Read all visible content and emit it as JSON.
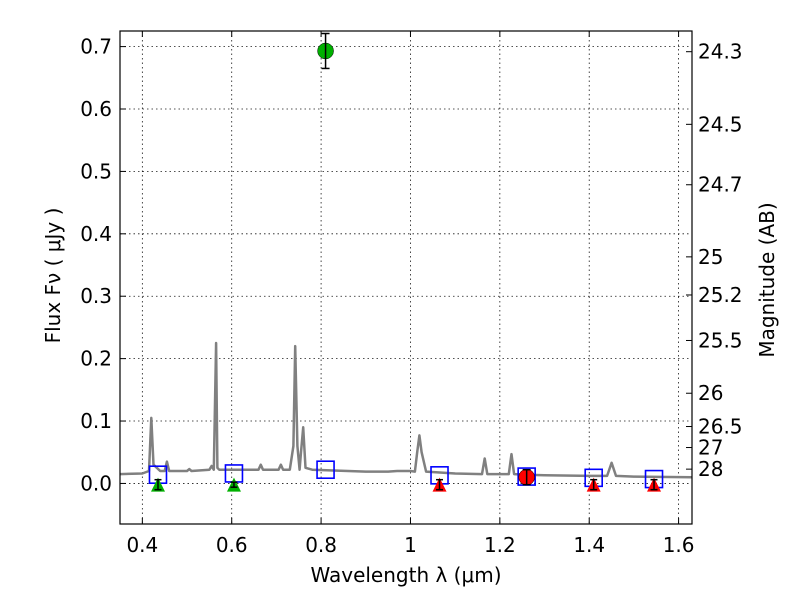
{
  "chart_data": {
    "type": "scatter",
    "xlabel": "Wavelength  λ (μm)",
    "ylabel": "Flux  Fν  ( μJy )",
    "y2label": "Magnitude (AB)",
    "xlim": [
      0.35,
      1.63
    ],
    "ylim": [
      -0.065,
      0.725
    ],
    "grid": true,
    "x_ticks": [
      {
        "value": 0.4,
        "label": "0.4"
      },
      {
        "value": 0.6,
        "label": "0.6"
      },
      {
        "value": 0.8,
        "label": "0.8"
      },
      {
        "value": 1.0,
        "label": "1"
      },
      {
        "value": 1.2,
        "label": "1.2"
      },
      {
        "value": 1.4,
        "label": "1.4"
      },
      {
        "value": 1.6,
        "label": "1.6"
      }
    ],
    "y_ticks": [
      {
        "value": 0.0,
        "label": "0.0"
      },
      {
        "value": 0.1,
        "label": "0.1"
      },
      {
        "value": 0.2,
        "label": "0.2"
      },
      {
        "value": 0.3,
        "label": "0.3"
      },
      {
        "value": 0.4,
        "label": "0.4"
      },
      {
        "value": 0.5,
        "label": "0.5"
      },
      {
        "value": 0.6,
        "label": "0.6"
      },
      {
        "value": 0.7,
        "label": "0.7"
      }
    ],
    "y2_ticks": [
      {
        "value": 24.3,
        "label": "24.3"
      },
      {
        "value": 24.5,
        "label": "24.5"
      },
      {
        "value": 24.7,
        "label": "24.7"
      },
      {
        "value": 25.0,
        "label": "25"
      },
      {
        "value": 25.2,
        "label": "25.2"
      },
      {
        "value": 25.5,
        "label": "25.5"
      },
      {
        "value": 26.0,
        "label": "26"
      },
      {
        "value": 26.5,
        "label": "26.5"
      },
      {
        "value": 27.0,
        "label": "27"
      },
      {
        "value": 28.0,
        "label": "28"
      }
    ],
    "template_spectrum": {
      "color": "#808080",
      "x": [
        0.35,
        0.4,
        0.415,
        0.42,
        0.425,
        0.44,
        0.45,
        0.455,
        0.46,
        0.48,
        0.5,
        0.505,
        0.51,
        0.55,
        0.555,
        0.56,
        0.565,
        0.568,
        0.572,
        0.58,
        0.6,
        0.66,
        0.665,
        0.67,
        0.705,
        0.71,
        0.715,
        0.73,
        0.738,
        0.742,
        0.747,
        0.752,
        0.755,
        0.76,
        0.765,
        0.78,
        0.9,
        0.95,
        0.97,
        1.0,
        1.01,
        1.015,
        1.02,
        1.025,
        1.035,
        1.1,
        1.16,
        1.166,
        1.172,
        1.2,
        1.22,
        1.226,
        1.232,
        1.26,
        1.3,
        1.4,
        1.44,
        1.45,
        1.46,
        1.5,
        1.63
      ],
      "y": [
        0.015,
        0.016,
        0.02,
        0.105,
        0.03,
        0.02,
        0.02,
        0.035,
        0.02,
        0.02,
        0.02,
        0.023,
        0.02,
        0.022,
        0.028,
        0.022,
        0.225,
        0.025,
        0.022,
        0.022,
        0.022,
        0.022,
        0.03,
        0.022,
        0.022,
        0.03,
        0.022,
        0.022,
        0.06,
        0.22,
        0.06,
        0.022,
        0.05,
        0.09,
        0.025,
        0.022,
        0.019,
        0.019,
        0.02,
        0.02,
        0.019,
        0.05,
        0.077,
        0.05,
        0.019,
        0.016,
        0.015,
        0.04,
        0.015,
        0.015,
        0.015,
        0.047,
        0.015,
        0.014,
        0.013,
        0.012,
        0.012,
        0.033,
        0.012,
        0.011,
        0.01
      ]
    },
    "model_points": {
      "color": "#0000ff",
      "x": [
        0.435,
        0.605,
        0.81,
        1.065,
        1.26,
        1.41,
        1.545
      ],
      "y": [
        0.014,
        0.016,
        0.022,
        0.013,
        0.011,
        0.009,
        0.007
      ]
    },
    "detections": [
      {
        "x": 0.81,
        "y": 0.693,
        "err": 0.028,
        "color": "#00b000"
      },
      {
        "x": 1.26,
        "y": 0.01,
        "err": 0.012,
        "color": "#ff0000"
      }
    ],
    "upper_limits": [
      {
        "x": 0.435,
        "y": -0.002,
        "err": 0.008,
        "color": "#00b000"
      },
      {
        "x": 0.605,
        "y": -0.002,
        "err": 0.004,
        "color": "#00b000"
      },
      {
        "x": 1.065,
        "y": -0.002,
        "err": 0.008,
        "color": "#ff0000"
      },
      {
        "x": 1.41,
        "y": -0.002,
        "err": 0.008,
        "color": "#ff0000"
      },
      {
        "x": 1.545,
        "y": -0.002,
        "err": 0.008,
        "color": "#ff0000"
      }
    ]
  }
}
